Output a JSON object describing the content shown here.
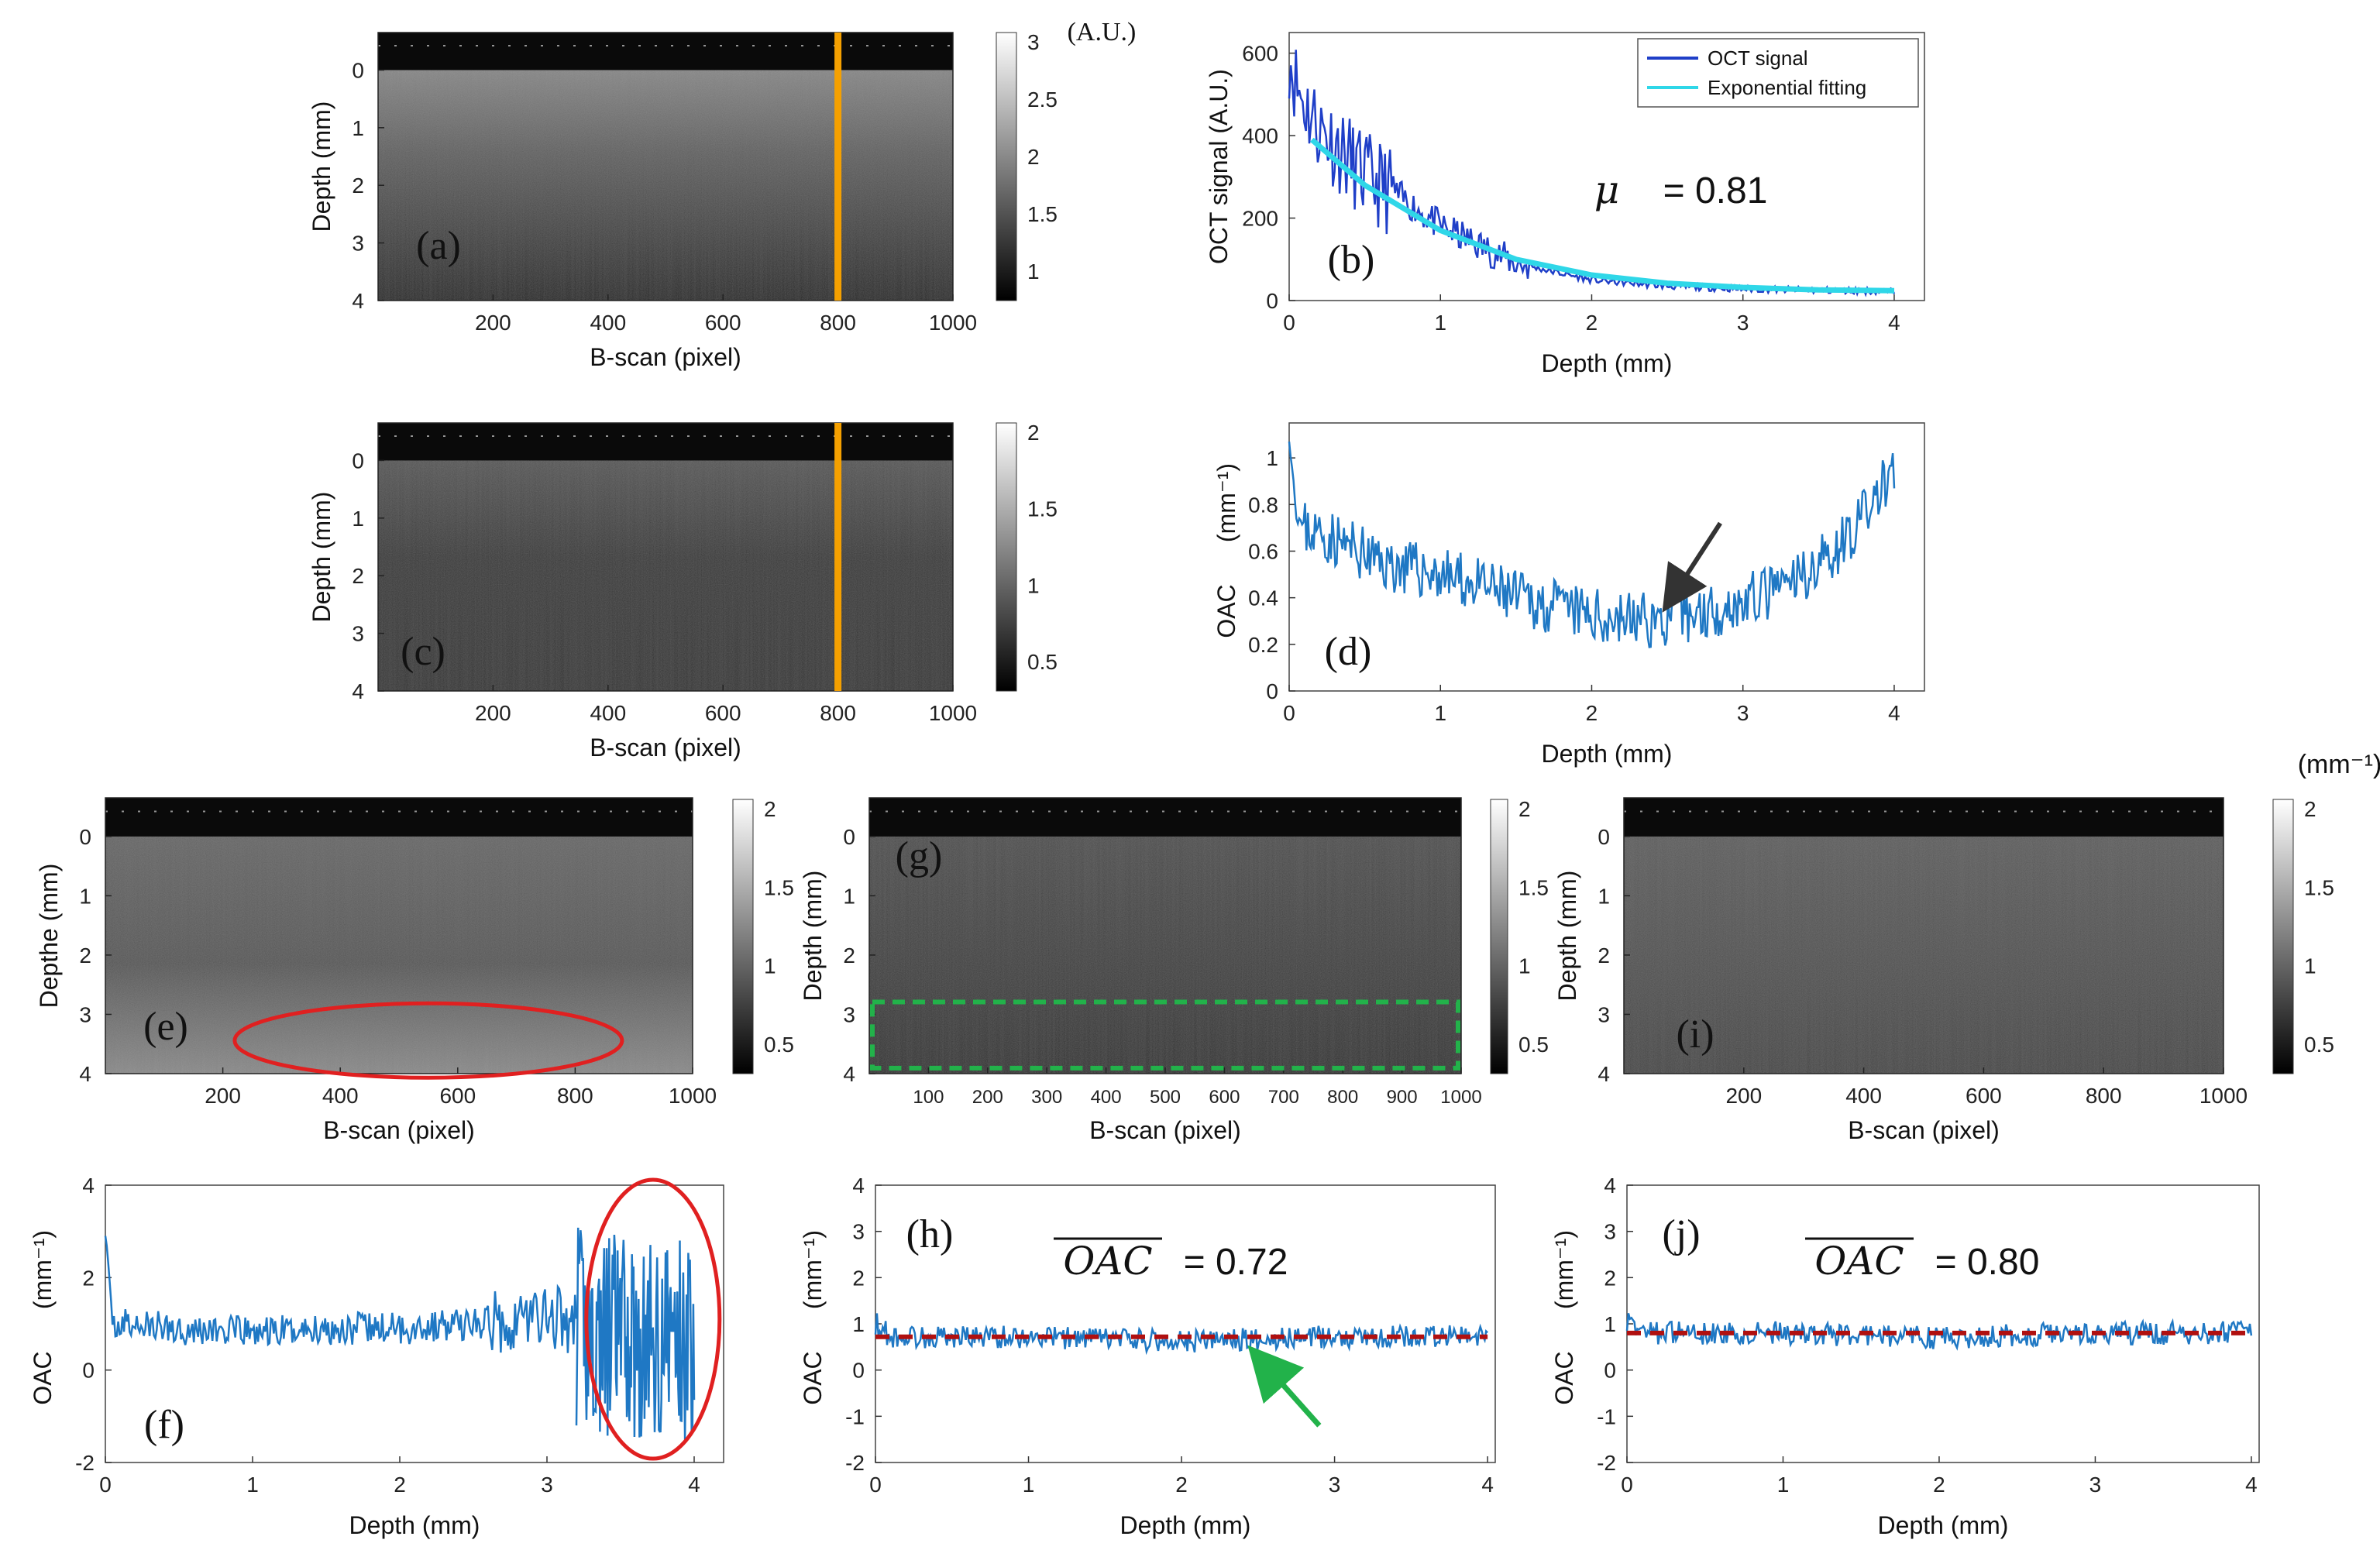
{
  "chart_data": [
    {
      "id": "a",
      "type": "heatmap",
      "panel_label": "(a)",
      "xlabel": "B-scan (pixel)",
      "ylabel": "Depth (mm)",
      "xticks": [
        "200",
        "400",
        "600",
        "800",
        "1000"
      ],
      "yticks": [
        "0",
        "1",
        "2",
        "3",
        "4"
      ],
      "colorbar": {
        "ticks": [
          "3",
          "2.5",
          "2",
          "1.5",
          "1"
        ],
        "unit": "(A.U.)"
      },
      "marker": "orange vertical line at pixel 800"
    },
    {
      "id": "b",
      "type": "line",
      "panel_label": "(b)",
      "xlabel": "Depth (mm)",
      "ylabel": "OCT signal (A.U.)",
      "xticks": [
        "0",
        "1",
        "2",
        "3",
        "4"
      ],
      "yticks": [
        "0",
        "200",
        "400",
        "600"
      ],
      "xlim": [
        0,
        4.2
      ],
      "ylim": [
        0,
        650
      ],
      "legend": [
        "OCT signal",
        "Exponential fitting"
      ],
      "annotation_symbol": "μ",
      "annotation_eq": "= 0.81",
      "series": [
        {
          "name": "OCT signal",
          "color": "#1f3fc8",
          "x": [
            0,
            0.05,
            0.1,
            0.2,
            0.3,
            0.4,
            0.5,
            0.7,
            1.0,
            1.5,
            2.0,
            2.5,
            3.0,
            3.5,
            4.0
          ],
          "y": [
            600,
            520,
            480,
            420,
            380,
            340,
            300,
            260,
            180,
            90,
            50,
            35,
            28,
            25,
            22
          ]
        },
        {
          "name": "Exponential fitting",
          "color": "#2fd7e8",
          "x": [
            0.15,
            0.5,
            1.0,
            1.5,
            2.0,
            2.5,
            3.0,
            3.5,
            4.0
          ],
          "y": [
            390,
            280,
            170,
            100,
            62,
            42,
            32,
            26,
            24
          ]
        }
      ]
    },
    {
      "id": "c",
      "type": "heatmap",
      "panel_label": "(c)",
      "xlabel": "B-scan (pixel)",
      "ylabel": "Depth (mm)",
      "xticks": [
        "200",
        "400",
        "600",
        "800",
        "1000"
      ],
      "yticks": [
        "0",
        "1",
        "2",
        "3",
        "4"
      ],
      "colorbar": {
        "ticks": [
          "2",
          "1.5",
          "1",
          "0.5"
        ]
      }
    },
    {
      "id": "d",
      "type": "line",
      "panel_label": "(d)",
      "xlabel": "Depth (mm)",
      "ylabel": "OAC",
      "yunit": "(mm⁻¹)",
      "xticks": [
        "0",
        "1",
        "2",
        "3",
        "4"
      ],
      "yticks": [
        "0",
        "0.2",
        "0.4",
        "0.6",
        "0.8",
        "1"
      ],
      "xlim": [
        0,
        4.2
      ],
      "ylim": [
        0,
        1.15
      ],
      "series": [
        {
          "name": "OAC",
          "color": "#1f78c4",
          "x": [
            0,
            0.05,
            0.1,
            0.3,
            0.6,
            1.0,
            1.5,
            2.0,
            2.5,
            3.0,
            3.3,
            3.6,
            3.8,
            4.0
          ],
          "y": [
            1.1,
            0.75,
            0.7,
            0.65,
            0.55,
            0.5,
            0.4,
            0.32,
            0.3,
            0.38,
            0.45,
            0.6,
            0.75,
            0.95
          ]
        }
      ]
    },
    {
      "id": "e",
      "type": "heatmap",
      "panel_label": "(e)",
      "xlabel": "B-scan (pixel)",
      "ylabel": "Depthe (mm)",
      "xticks": [
        "200",
        "400",
        "600",
        "800",
        "1000"
      ],
      "yticks": [
        "0",
        "1",
        "2",
        "3",
        "4"
      ],
      "colorbar": {
        "ticks": [
          "2",
          "1.5",
          "1",
          "0.5"
        ]
      }
    },
    {
      "id": "f",
      "type": "line",
      "panel_label": "(f)",
      "xlabel": "Depth (mm)",
      "ylabel": "OAC",
      "yunit": "(mm⁻¹)",
      "xticks": [
        "0",
        "1",
        "2",
        "3",
        "4"
      ],
      "yticks": [
        "-2",
        "0",
        "2",
        "4"
      ],
      "xlim": [
        0,
        4.2
      ],
      "ylim": [
        -2,
        4
      ],
      "series": [
        {
          "name": "OAC",
          "color": "#1f78c4",
          "x": [
            0,
            0.05,
            0.5,
            1,
            1.5,
            2,
            2.5,
            3,
            3.2
          ],
          "y": [
            3,
            1,
            0.9,
            0.8,
            0.9,
            0.9,
            1.0,
            1.2,
            1.0
          ]
        }
      ]
    },
    {
      "id": "g",
      "type": "heatmap",
      "panel_label": "(g)",
      "xlabel": "B-scan (pixel)",
      "ylabel": "Depth (mm)",
      "xticks": [
        "100",
        "200",
        "300",
        "400",
        "500",
        "600",
        "700",
        "800",
        "900",
        "1000"
      ],
      "yticks": [
        "0",
        "1",
        "2",
        "3",
        "4"
      ],
      "colorbar": {
        "ticks": [
          "2",
          "1.5",
          "1",
          "0.5"
        ]
      }
    },
    {
      "id": "h",
      "type": "line",
      "panel_label": "(h)",
      "xlabel": "Depth (mm)",
      "ylabel": "OAC",
      "yunit": "(mm⁻¹)",
      "xticks": [
        "0",
        "1",
        "2",
        "3",
        "4"
      ],
      "yticks": [
        "-2",
        "-1",
        "0",
        "1",
        "2",
        "3",
        "4"
      ],
      "xlim": [
        0,
        4.05
      ],
      "ylim": [
        -2,
        4
      ],
      "annotation": "OAC",
      "annotation_eq": "= 0.72",
      "mean_value": 0.72,
      "series": [
        {
          "name": "OAC",
          "color": "#1f78c4",
          "x": [
            0,
            1,
            2,
            3,
            4
          ],
          "y": [
            0.72,
            0.72,
            0.72,
            0.72,
            0.72
          ]
        }
      ]
    },
    {
      "id": "i",
      "type": "heatmap",
      "panel_label": "(i)",
      "xlabel": "B-scan (pixel)",
      "ylabel": "Depth (mm)",
      "xticks": [
        "200",
        "400",
        "600",
        "800",
        "1000"
      ],
      "yticks": [
        "0",
        "1",
        "2",
        "3",
        "4"
      ],
      "colorbar": {
        "ticks": [
          "2",
          "1.5",
          "1",
          "0.5"
        ],
        "unit": "(mm⁻¹)"
      }
    },
    {
      "id": "j",
      "type": "line",
      "panel_label": "(j)",
      "xlabel": "Depth (mm)",
      "ylabel": "OAC",
      "yunit": "(mm⁻¹)",
      "xticks": [
        "0",
        "1",
        "2",
        "3",
        "4"
      ],
      "yticks": [
        "-2",
        "-1",
        "0",
        "1",
        "2",
        "3",
        "4"
      ],
      "xlim": [
        0,
        4.05
      ],
      "ylim": [
        -2,
        4
      ],
      "annotation": "OAC",
      "annotation_eq": "= 0.80",
      "mean_value": 0.8,
      "series": [
        {
          "name": "OAC",
          "color": "#1f78c4",
          "x": [
            0,
            1,
            2,
            3,
            4
          ],
          "y": [
            0.8,
            0.8,
            0.8,
            0.8,
            0.8
          ]
        }
      ]
    }
  ],
  "colors": {
    "orange": "#f5a000",
    "red": "#e02020",
    "green": "#22b24a",
    "dark_red_dash": "#b01010",
    "arrow_dark": "#333333"
  }
}
